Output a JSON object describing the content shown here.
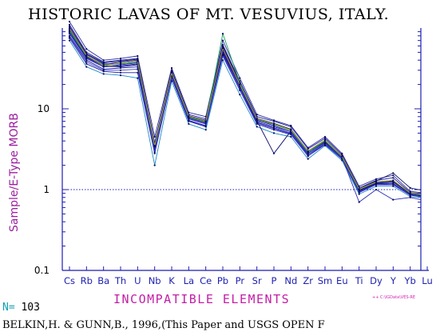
{
  "chart_data": {
    "type": "line",
    "title": "HISTORIC LAVAS OF MT. VESUVIUS, ITALY.",
    "xlabel": "INCOMPATIBLE ELEMENTS",
    "ylabel": "Sample/E-Type MORB",
    "y_scale": "log",
    "ylim": [
      0.1,
      100
    ],
    "y_ticks": [
      {
        "value": 0.1,
        "label": "0.1"
      },
      {
        "value": 1,
        "label": "1"
      },
      {
        "value": 10,
        "label": "10"
      }
    ],
    "reference_line": 1,
    "categories": [
      "Cs",
      "Rb",
      "Ba",
      "Th",
      "U",
      "Nb",
      "K",
      "La",
      "Ce",
      "Pb",
      "Pr",
      "Sr",
      "P",
      "Nd",
      "Zr",
      "Sm",
      "Eu",
      "Ti",
      "Dy",
      "Y",
      "Yb",
      "Lu"
    ],
    "series_color": "#1a1aa8",
    "accent_colors": [
      "#0a0a70",
      "#2a2ab8",
      "#15156a",
      "#3a3ac8",
      "#16a05a",
      "#b8a020",
      "#1e88c8",
      "#2e2e9a"
    ],
    "series": [
      {
        "values": [
          95,
          45,
          35,
          38,
          40,
          3.5,
          28,
          8,
          7,
          55,
          20,
          7.5,
          6.5,
          5.5,
          3,
          4,
          2.6,
          1.0,
          1.25,
          1.3,
          0.9,
          0.85
        ]
      },
      {
        "values": [
          85,
          42,
          33,
          34,
          36,
          3.2,
          26,
          7.5,
          6.5,
          52,
          19,
          7.0,
          6.0,
          5.2,
          2.8,
          3.8,
          2.5,
          0.95,
          1.2,
          1.25,
          0.88,
          0.82
        ]
      },
      {
        "values": [
          80,
          40,
          31,
          32,
          33,
          3.0,
          25,
          7.2,
          6.2,
          48,
          18,
          6.8,
          5.8,
          5.0,
          2.7,
          3.7,
          2.45,
          0.95,
          1.18,
          1.2,
          0.86,
          0.8
        ]
      },
      {
        "values": [
          110,
          50,
          38,
          40,
          42,
          3.8,
          30,
          8.5,
          7.5,
          62,
          22,
          8.0,
          7.0,
          6.0,
          3.2,
          4.3,
          2.7,
          1.05,
          1.3,
          1.4,
          0.92,
          0.88
        ]
      },
      {
        "values": [
          75,
          36,
          29,
          28,
          28,
          2.8,
          24,
          7.0,
          6.0,
          45,
          17,
          6.5,
          5.5,
          4.8,
          2.6,
          3.6,
          2.4,
          0.92,
          1.15,
          1.15,
          0.85,
          0.8
        ]
      },
      {
        "values": [
          100,
          47,
          36,
          36,
          38,
          3.4,
          28,
          8.0,
          7.0,
          58,
          20,
          7.2,
          6.4,
          5.4,
          2.9,
          4.0,
          2.55,
          1.0,
          1.22,
          1.28,
          0.9,
          0.84
        ]
      },
      {
        "values": [
          70,
          33,
          27,
          26,
          24,
          2.0,
          22,
          6.5,
          5.5,
          40,
          15,
          6.0,
          5.0,
          4.5,
          2.4,
          3.5,
          2.3,
          0.88,
          1.1,
          1.1,
          0.82,
          0.78
        ]
      },
      {
        "values": [
          120,
          55,
          40,
          42,
          45,
          4.5,
          32,
          9.0,
          8.0,
          70,
          24,
          8.5,
          7.2,
          6.2,
          3.3,
          4.5,
          2.8,
          1.1,
          1.35,
          1.5,
          0.95,
          0.9
        ]
      },
      {
        "values": [
          90,
          44,
          34,
          33,
          35,
          3.3,
          27,
          7.8,
          6.8,
          50,
          19,
          7.1,
          2.8,
          5.3,
          2.9,
          3.9,
          2.5,
          0.98,
          1.2,
          1.25,
          0.88,
          0.83
        ]
      },
      {
        "values": [
          88,
          43,
          33,
          35,
          37,
          3.1,
          27,
          7.6,
          6.6,
          53,
          19,
          7.3,
          6.2,
          5.2,
          2.8,
          3.8,
          2.5,
          0.7,
          1.0,
          0.75,
          0.8,
          0.72
        ]
      },
      {
        "values": [
          105,
          48,
          37,
          39,
          41,
          3.6,
          29,
          8.2,
          7.2,
          60,
          21,
          7.6,
          6.6,
          5.6,
          3.0,
          4.1,
          2.6,
          1.02,
          1.28,
          1.6,
          1.05,
          0.95
        ]
      },
      {
        "values": [
          78,
          38,
          30,
          30,
          31,
          2.9,
          25,
          7.1,
          6.1,
          46,
          17,
          6.7,
          5.7,
          4.9,
          2.6,
          3.7,
          2.42,
          0.93,
          1.16,
          1.18,
          0.86,
          0.81
        ]
      },
      {
        "values": [
          92,
          45,
          35,
          36,
          38,
          3.4,
          28,
          7.9,
          6.9,
          85,
          21,
          7.4,
          6.4,
          5.4,
          2.9,
          4.0,
          2.55,
          1.0,
          1.23,
          1.3,
          0.9,
          0.84
        ]
      },
      {
        "values": [
          98,
          46,
          34,
          37,
          39,
          3.5,
          28,
          8.1,
          7.0,
          56,
          20,
          7.5,
          6.5,
          5.5,
          3.0,
          4.1,
          2.58,
          1.01,
          1.24,
          1.3,
          0.91,
          0.85
        ]
      }
    ]
  },
  "footer": {
    "n_key": "N=",
    "n_value": "103",
    "tiny_note": "++ C:\\IGData\\VES-RE",
    "citation": "BELKIN,H. & GUNN,B., 1996,(This Paper and USGS OPEN F"
  }
}
